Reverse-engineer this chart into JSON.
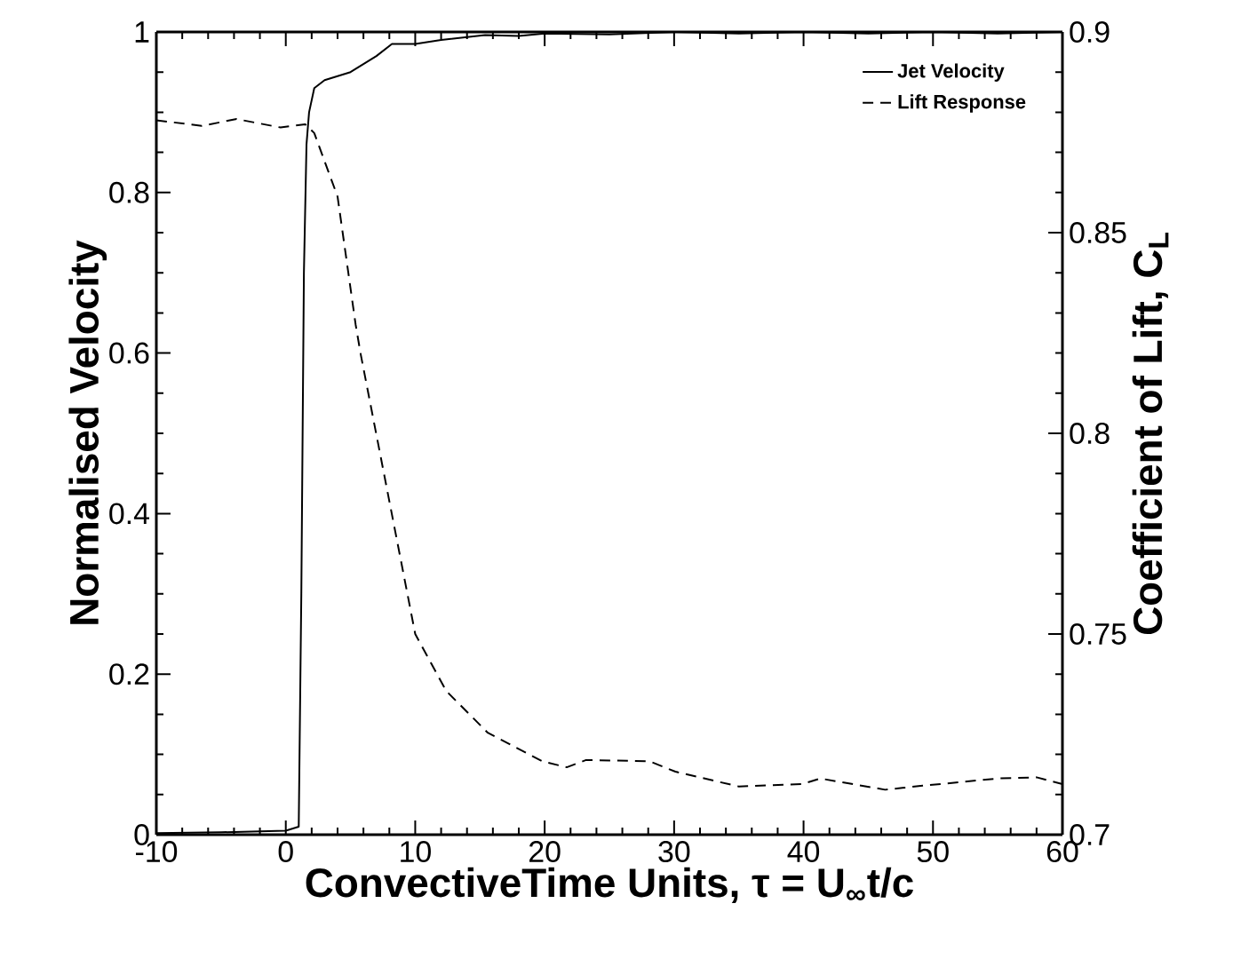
{
  "chart_data": {
    "type": "line",
    "xlabel": "ConvectiveTime Units, τ = U$_{∞}$t/c",
    "ylabel": "Normalised Velocity",
    "y2label": "Coefficient of Lift, C$_{L}$",
    "xlim": [
      -10,
      60
    ],
    "xticks": [
      -10,
      0,
      10,
      20,
      30,
      40,
      50,
      60
    ],
    "ylim": [
      0,
      1
    ],
    "yticks": [
      0,
      0.2,
      0.4,
      0.6,
      0.8,
      1
    ],
    "y2lim": [
      0.7,
      0.9
    ],
    "y2ticks": [
      0.7,
      0.75,
      0.8,
      0.85,
      0.9
    ],
    "legend": "top right",
    "grid": false,
    "marker": "none",
    "series": [
      {
        "name": "Jet Velocity",
        "color": "#000000",
        "line_style": "solid",
        "x": [
          -10,
          -5,
          0,
          1.0,
          1.2,
          1.4,
          1.6,
          1.8,
          2.2,
          3,
          4,
          5,
          6,
          7,
          8.2,
          10,
          12,
          15.4,
          18,
          20,
          25,
          30,
          35,
          40,
          45,
          50,
          55,
          60
        ],
        "values": [
          0.002,
          0.003,
          0.005,
          0.01,
          0.3,
          0.7,
          0.86,
          0.9,
          0.93,
          0.94,
          0.945,
          0.95,
          0.96,
          0.97,
          0.985,
          0.985,
          0.99,
          0.996,
          0.995,
          0.998,
          0.997,
          1.0,
          0.998,
          1.0,
          0.998,
          1.0,
          0.998,
          1.0
        ]
      },
      {
        "name": "Lift Response",
        "color": "#000000",
        "line_style": "dashed",
        "axis": "y2",
        "x": [
          -10,
          -6.5,
          -3.8,
          -0.4,
          1.5,
          2.2,
          4.0,
          5.4,
          5.8,
          10.0,
          12.4,
          15.6,
          19.8,
          21.7,
          23.2,
          28.1,
          30.1,
          35.0,
          39.9,
          41.3,
          46.3,
          49.2,
          55.0,
          58.0,
          60
        ],
        "values": [
          0.878,
          0.8766,
          0.8783,
          0.8762,
          0.877,
          0.8748,
          0.859,
          0.827,
          0.8195,
          0.75,
          0.7358,
          0.7254,
          0.7183,
          0.7168,
          0.7186,
          0.7183,
          0.7157,
          0.712,
          0.7126,
          0.714,
          0.7112,
          0.7122,
          0.714,
          0.7143,
          0.7126
        ]
      }
    ]
  }
}
